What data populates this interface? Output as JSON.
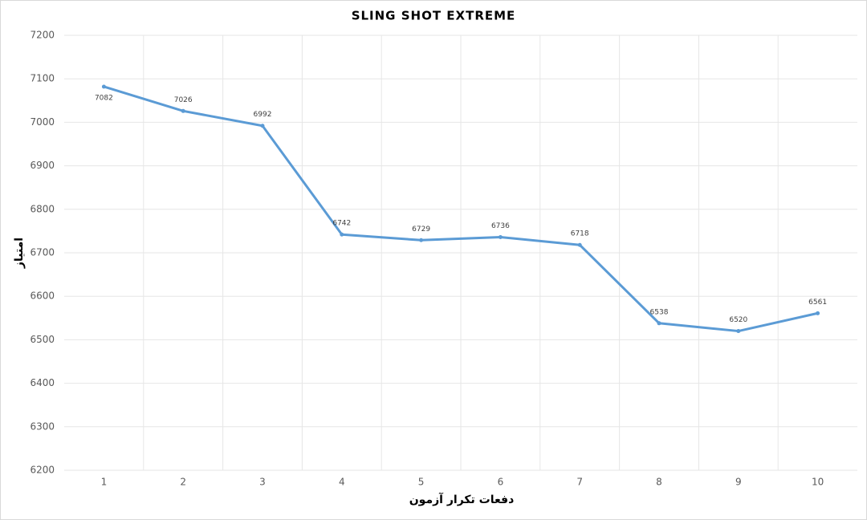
{
  "chart_data": {
    "type": "line",
    "title": "SLING SHOT EXTREME",
    "x_label": "دفعات تکرار آزمون",
    "y_label": "امتیاز",
    "categories": [
      "1",
      "2",
      "3",
      "4",
      "5",
      "6",
      "7",
      "8",
      "9",
      "10"
    ],
    "series": [
      {
        "name": "SLING SHOT EXTREME",
        "color": "#5b9bd5",
        "values": [
          7082,
          7026,
          6992,
          6742,
          6729,
          6736,
          6718,
          6538,
          6520,
          6561
        ]
      }
    ],
    "ylim": [
      6200,
      7200
    ],
    "yticks": [
      6200,
      6300,
      6400,
      6500,
      6600,
      6700,
      6800,
      6900,
      7000,
      7100,
      7200
    ],
    "grid": true
  }
}
